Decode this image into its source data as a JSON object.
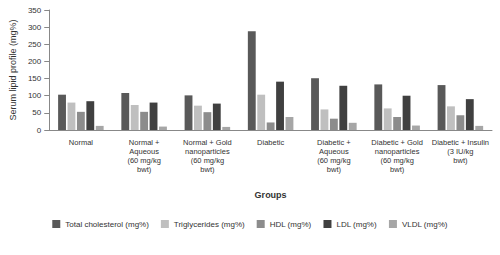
{
  "chart_data": {
    "type": "bar",
    "x_label": "Groups",
    "y_label": "Serum lipid profile (mg%)",
    "categories": [
      "Normal",
      "Normal +\nAqueous\n(60 mg/kg\nbwt)",
      "Normal + Gold\nnanoparticles\n(60 mg/kg\nbwt)",
      "Diabetic",
      "Diabetic +\nAqueous\n(60 mg/kg\nbwt)",
      "Diabetic + Gold\nnanoparticles\n(60 mg/kg\nbwt)",
      "Diabetic + Insulin\n(3 IU/kg\nbwt)"
    ],
    "series": [
      {
        "name": "Total cholesterol (mg%)",
        "color": "#595959",
        "values": [
          103,
          108,
          101,
          288,
          151,
          133,
          131
        ]
      },
      {
        "name": "Triglycerides (mg%)",
        "color": "#bfbfbf",
        "values": [
          80,
          73,
          71,
          103,
          60,
          63,
          69
        ]
      },
      {
        "name": "HDL (mg%)",
        "color": "#8c8c8c",
        "values": [
          53,
          53,
          52,
          22,
          33,
          38,
          43
        ]
      },
      {
        "name": "LDL (mg%)",
        "color": "#404040",
        "values": [
          84,
          80,
          77,
          141,
          129,
          100,
          90
        ]
      },
      {
        "name": "VLDL (mg%)",
        "color": "#a6a6a6",
        "values": [
          12,
          10,
          9,
          38,
          21,
          13,
          12
        ]
      }
    ],
    "ylim": [
      0,
      350
    ],
    "yticks": [
      0,
      50,
      100,
      150,
      200,
      250,
      300,
      350
    ],
    "grid": false,
    "legend": "bottom"
  }
}
